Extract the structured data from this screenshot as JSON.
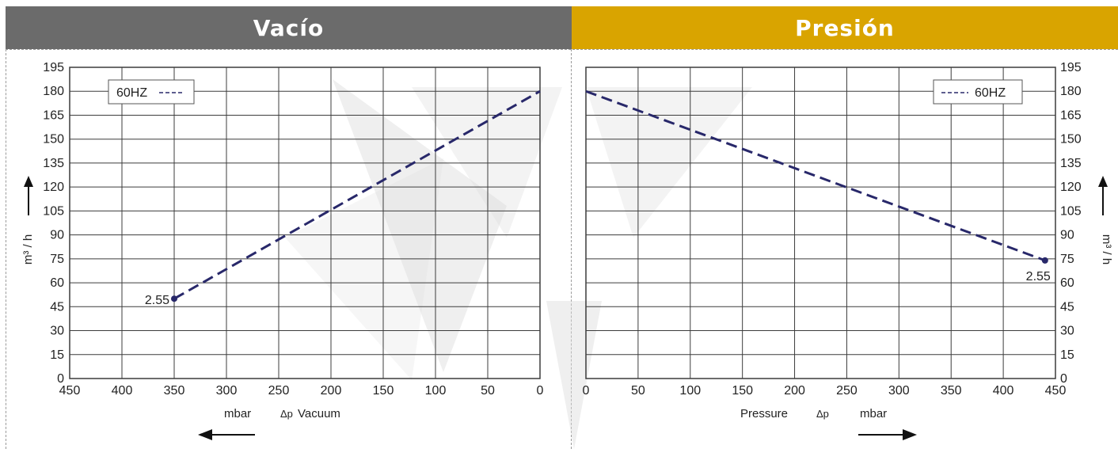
{
  "colors": {
    "banner_left": "#6b6b6b",
    "banner_right": "#d9a400",
    "series_line": "#28286a",
    "grid": "#3c3c3c",
    "watermark": "#dcdcdc"
  },
  "panels": {
    "left": {
      "title": "Vacío"
    },
    "right": {
      "title": "Presión"
    }
  },
  "chart_data": [
    {
      "type": "line",
      "title": "Vacío",
      "xlabel": "mbar   Δp  Vacuum",
      "ylabel": "m³ / h",
      "x_axis_reversed": true,
      "xlim": [
        0,
        450
      ],
      "ylim": [
        0,
        195
      ],
      "x_ticks": [
        450,
        400,
        350,
        300,
        250,
        200,
        150,
        100,
        50,
        0
      ],
      "y_ticks": [
        0,
        15,
        30,
        45,
        60,
        75,
        90,
        105,
        120,
        135,
        150,
        165,
        180,
        195
      ],
      "grid": true,
      "legend_position": "top-left",
      "arrow_direction": "left",
      "series": [
        {
          "name": "60HZ",
          "style": "dashed",
          "x": [
            350,
            0
          ],
          "y": [
            50,
            180
          ]
        }
      ],
      "annotations": [
        {
          "text": "2.55",
          "x": 350,
          "y": 50
        }
      ]
    },
    {
      "type": "line",
      "title": "Presión",
      "xlabel": "Pressure  Δp    mbar",
      "ylabel": "m³ / h",
      "x_axis_reversed": false,
      "xlim": [
        0,
        450
      ],
      "ylim": [
        0,
        195
      ],
      "x_ticks": [
        0,
        50,
        100,
        150,
        200,
        250,
        300,
        350,
        400,
        450
      ],
      "y_ticks": [
        0,
        15,
        30,
        45,
        60,
        75,
        90,
        105,
        120,
        135,
        150,
        165,
        180,
        195
      ],
      "grid": true,
      "legend_position": "top-right",
      "arrow_direction": "right",
      "series": [
        {
          "name": "60HZ",
          "style": "dashed",
          "x": [
            0,
            440
          ],
          "y": [
            180,
            74
          ]
        }
      ],
      "annotations": [
        {
          "text": "2.55",
          "x": 440,
          "y": 74
        }
      ]
    }
  ]
}
